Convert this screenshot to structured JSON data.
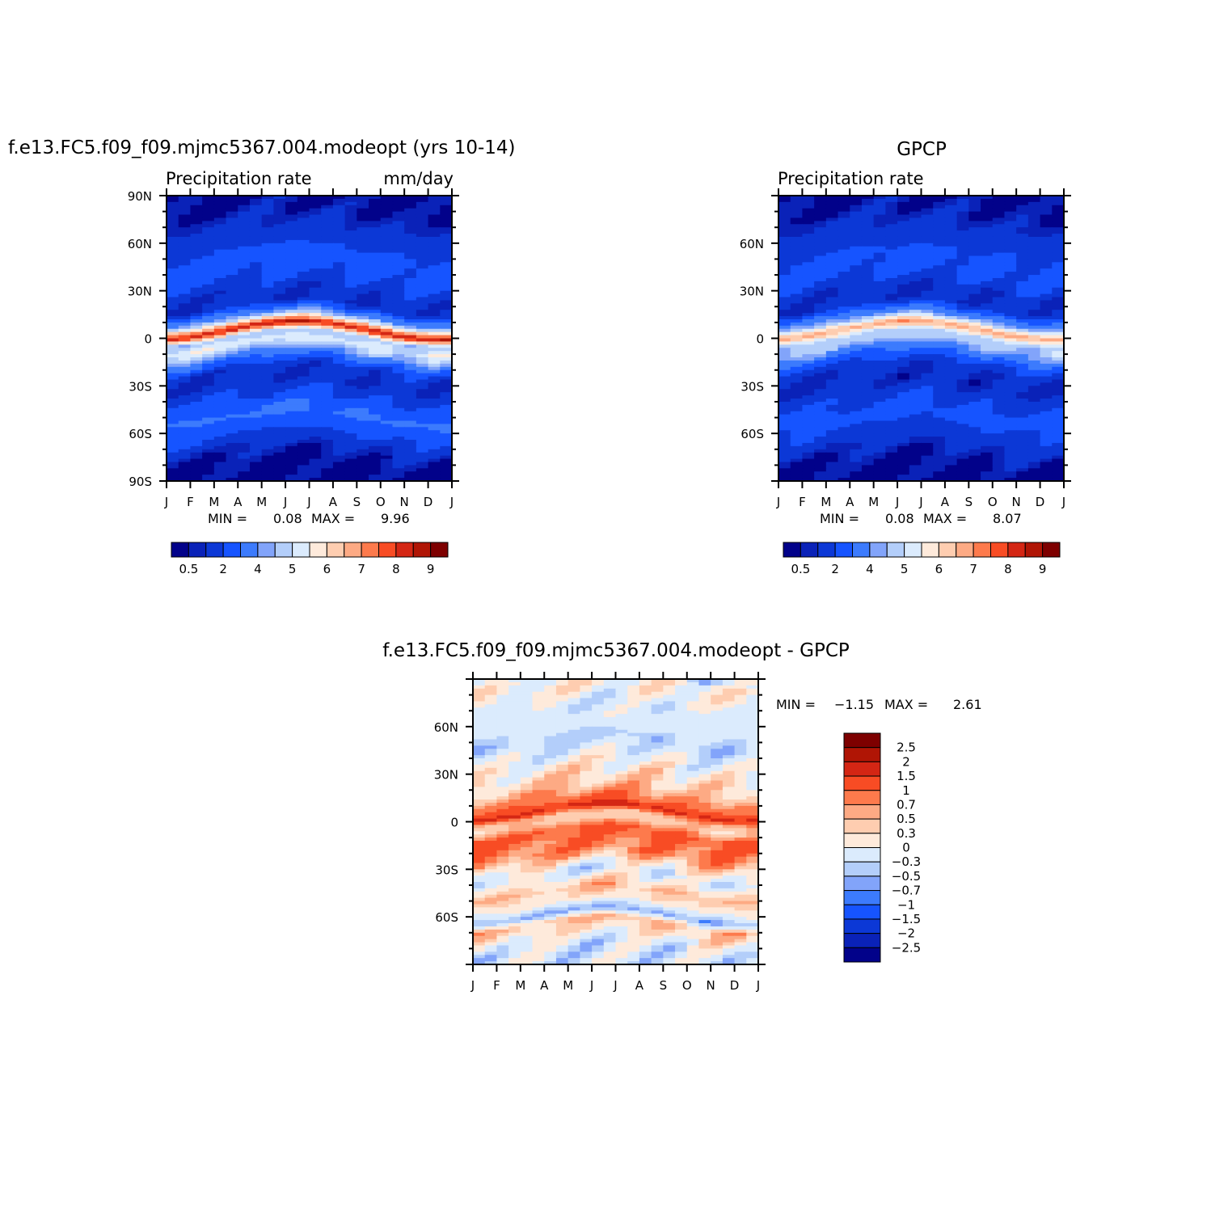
{
  "chart_data": [
    {
      "type": "heatmap",
      "id": "model",
      "title": "f.e13.FC5.f09_f09.mjmc5367.004.modeopt (yrs 10-14)",
      "subtitle_left": "Precipitation  rate",
      "subtitle_right": "mm/day",
      "x_ticks": [
        "J",
        "F",
        "M",
        "A",
        "M",
        "J",
        "J",
        "A",
        "S",
        "O",
        "N",
        "D",
        "J"
      ],
      "y_ticks": [
        "90N",
        "60N",
        "30N",
        "0",
        "30S",
        "60S",
        "90S"
      ],
      "ylim": [
        -90,
        90
      ],
      "stats": {
        "min_label": "MIN =",
        "min": "0.08",
        "max_label": "MAX =",
        "max": "9.96"
      },
      "levels": [
        0.5,
        1,
        2,
        3,
        4,
        4.5,
        5,
        5.5,
        6,
        6.5,
        7,
        7.5,
        8,
        8.5,
        9
      ],
      "colorbar_labels": [
        "0.5",
        "2",
        "4",
        "5",
        "6",
        "7",
        "8",
        "9"
      ],
      "colorbar_label_levels": [
        0.5,
        2,
        4,
        5,
        6,
        7,
        8,
        9
      ],
      "zonal_profile": [
        {
          "lat": 90,
          "v": 0.3
        },
        {
          "lat": 80,
          "v": 0.5
        },
        {
          "lat": 70,
          "v": 1.1
        },
        {
          "lat": 60,
          "v": 1.6
        },
        {
          "lat": 50,
          "v": 2.4
        },
        {
          "lat": 40,
          "v": 2.4
        },
        {
          "lat": 30,
          "v": 1.5
        },
        {
          "lat": 20,
          "v": 1.1
        },
        {
          "lat": 10,
          "v": 5.0
        },
        {
          "lat": 5,
          "v": 8.6
        },
        {
          "lat": 0,
          "v": 4.6
        },
        {
          "lat": -5,
          "v": 5.3
        },
        {
          "lat": -10,
          "v": 4.4
        },
        {
          "lat": -15,
          "v": 3.0
        },
        {
          "lat": -20,
          "v": 1.5
        },
        {
          "lat": -30,
          "v": 1.2
        },
        {
          "lat": -40,
          "v": 2.2
        },
        {
          "lat": -50,
          "v": 3.2
        },
        {
          "lat": -60,
          "v": 2.2
        },
        {
          "lat": -70,
          "v": 1.0
        },
        {
          "lat": -80,
          "v": 0.3
        },
        {
          "lat": -90,
          "v": 0.2
        }
      ]
    },
    {
      "type": "heatmap",
      "id": "obs",
      "title": "GPCP",
      "subtitle_left": "Precipitation  rate",
      "x_ticks": [
        "J",
        "F",
        "M",
        "A",
        "M",
        "J",
        "J",
        "A",
        "S",
        "O",
        "N",
        "D",
        "J"
      ],
      "y_ticks": [
        "60N",
        "30N",
        "0",
        "30S",
        "60S"
      ],
      "ylim": [
        -90,
        90
      ],
      "stats": {
        "min_label": "MIN =",
        "min": "0.08",
        "max_label": "MAX =",
        "max": "8.07"
      },
      "levels": [
        0.5,
        1,
        2,
        3,
        4,
        4.5,
        5,
        5.5,
        6,
        6.5,
        7,
        7.5,
        8,
        8.5,
        9
      ],
      "colorbar_labels": [
        "0.5",
        "2",
        "4",
        "5",
        "6",
        "7",
        "8",
        "9"
      ],
      "colorbar_label_levels": [
        0.5,
        2,
        4,
        5,
        6,
        7,
        8,
        9
      ],
      "zonal_profile": [
        {
          "lat": 90,
          "v": 0.3
        },
        {
          "lat": 80,
          "v": 0.6
        },
        {
          "lat": 70,
          "v": 1.1
        },
        {
          "lat": 60,
          "v": 1.6
        },
        {
          "lat": 50,
          "v": 2.2
        },
        {
          "lat": 40,
          "v": 2.3
        },
        {
          "lat": 30,
          "v": 1.3
        },
        {
          "lat": 20,
          "v": 1.2
        },
        {
          "lat": 10,
          "v": 4.6
        },
        {
          "lat": 5,
          "v": 6.8
        },
        {
          "lat": 0,
          "v": 4.8
        },
        {
          "lat": -5,
          "v": 4.6
        },
        {
          "lat": -10,
          "v": 3.4
        },
        {
          "lat": -15,
          "v": 2.3
        },
        {
          "lat": -20,
          "v": 1.3
        },
        {
          "lat": -30,
          "v": 1.0
        },
        {
          "lat": -40,
          "v": 1.8
        },
        {
          "lat": -50,
          "v": 2.3
        },
        {
          "lat": -60,
          "v": 1.8
        },
        {
          "lat": -70,
          "v": 1.0
        },
        {
          "lat": -80,
          "v": 0.4
        },
        {
          "lat": -90,
          "v": 0.2
        }
      ]
    },
    {
      "type": "heatmap",
      "id": "diff",
      "title": "f.e13.FC5.f09_f09.mjmc5367.004.modeopt - GPCP",
      "x_ticks": [
        "J",
        "F",
        "M",
        "A",
        "M",
        "J",
        "J",
        "A",
        "S",
        "O",
        "N",
        "D",
        "J"
      ],
      "y_ticks": [
        "60N",
        "30N",
        "0",
        "30S",
        "60S"
      ],
      "ylim": [
        -90,
        90
      ],
      "stats": {
        "min_label": "MIN =",
        "min": "-1.15",
        "max_label": "MAX =",
        "max": "2.61"
      },
      "levels": [
        -2.5,
        -2,
        -1.5,
        -1,
        -0.7,
        -0.5,
        -0.3,
        0,
        0.3,
        0.5,
        0.7,
        1,
        1.5,
        2,
        2.5
      ],
      "colorbar_labels": [
        "2.5",
        "2",
        "1.5",
        "1",
        "0.7",
        "0.5",
        "0.3",
        "0",
        "-0.3",
        "-0.5",
        "-0.7",
        "-1",
        "-1.5",
        "-2",
        "-2.5"
      ],
      "zonal_profile": [
        {
          "lat": 90,
          "v": 0.1
        },
        {
          "lat": 80,
          "v": 0.1
        },
        {
          "lat": 70,
          "v": -0.2
        },
        {
          "lat": 60,
          "v": -0.1
        },
        {
          "lat": 50,
          "v": -0.4
        },
        {
          "lat": 40,
          "v": -0.1
        },
        {
          "lat": 30,
          "v": 0.2
        },
        {
          "lat": 20,
          "v": 0.4
        },
        {
          "lat": 10,
          "v": 1.0
        },
        {
          "lat": 6,
          "v": 1.7
        },
        {
          "lat": 2,
          "v": 0.5
        },
        {
          "lat": -3,
          "v": 0.4
        },
        {
          "lat": -8,
          "v": 1.1
        },
        {
          "lat": -15,
          "v": 0.9
        },
        {
          "lat": -22,
          "v": 0.8
        },
        {
          "lat": -30,
          "v": 0.1
        },
        {
          "lat": -35,
          "v": -0.2
        },
        {
          "lat": -45,
          "v": 0.5
        },
        {
          "lat": -52,
          "v": 0.2
        },
        {
          "lat": -60,
          "v": -0.6
        },
        {
          "lat": -65,
          "v": 0.5
        },
        {
          "lat": -72,
          "v": 0.2
        },
        {
          "lat": -80,
          "v": -0.2
        },
        {
          "lat": -90,
          "v": -0.2
        }
      ]
    }
  ],
  "palette": [
    "#02028a",
    "#0a22b8",
    "#0c38d6",
    "#1654ff",
    "#3c7bfd",
    "#82a4fa",
    "#b3cefa",
    "#dbebfd",
    "#feeadb",
    "#fecdb0",
    "#fdaa84",
    "#fd7a4c",
    "#f84c24",
    "#d42614",
    "#b01505",
    "#7e0000"
  ]
}
